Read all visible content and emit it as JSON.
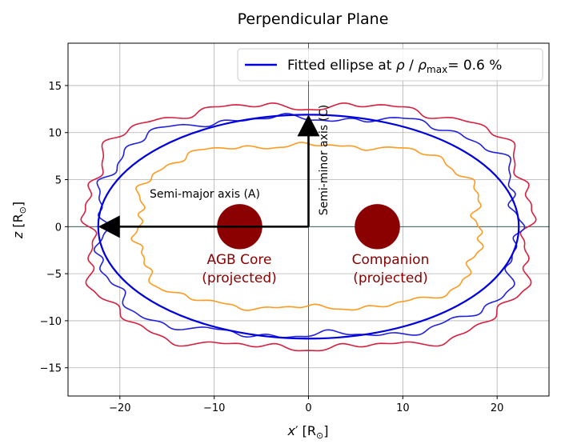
{
  "chart_data": {
    "type": "line",
    "title": "Perpendicular Plane",
    "xlabel_main": "x",
    "xlabel_prime": "′",
    "xlabel_unit": " [R",
    "xlabel_sun": "⊙",
    "xlabel_close": "]",
    "ylabel_main": "z",
    "ylabel_unit": " [R",
    "ylabel_sun": "⊙",
    "ylabel_close": "]",
    "xlim": [
      -25.5,
      25.5
    ],
    "ylim": [
      -18,
      19.5
    ],
    "xticks": [
      -20,
      -10,
      0,
      10,
      20
    ],
    "yticks": [
      -15,
      -10,
      -5,
      0,
      5,
      10,
      15
    ],
    "xtick_labels": [
      "−20",
      "−10",
      "0",
      "10",
      "20"
    ],
    "ytick_labels": [
      "−15",
      "−10",
      "−5",
      "0",
      "5",
      "10",
      "15"
    ],
    "grid": true,
    "legend_position": "top-right",
    "legend": {
      "label_prefix": "Fitted ellipse at ",
      "rho": "ρ",
      "slash": " / ",
      "rho_max": "ρ",
      "max_sub": "max",
      "label_suffix": "= 0.6 %"
    },
    "ellipse": {
      "cx": 0,
      "cz": 0,
      "a": 22.3,
      "c": 11.9,
      "color": "#0000dd"
    },
    "contours": [
      {
        "name": "outer",
        "color": "#d62040",
        "rx": 23.3,
        "rz": 12.8
      },
      {
        "name": "middle",
        "color": "#2222dd",
        "rx": 22.0,
        "rz": 11.5
      },
      {
        "name": "inner",
        "color": "#ff9a20",
        "rx": 18.0,
        "rz": 8.6
      }
    ],
    "bodies": [
      {
        "name": "AGB Core",
        "sub": "(projected)",
        "x": -7.3,
        "z": 0,
        "r": 2.4,
        "color": "#8b0000"
      },
      {
        "name": "Companion",
        "sub": "(projected)",
        "x": 7.3,
        "z": 0,
        "r": 2.4,
        "color": "#8b0000"
      }
    ],
    "arrows": [
      {
        "label": "Semi-major axis (A)",
        "from": [
          0,
          0
        ],
        "to": [
          -22.3,
          0
        ]
      },
      {
        "label": "Semi-minor axis (C)",
        "from": [
          0,
          0
        ],
        "to": [
          0,
          11.9
        ]
      }
    ],
    "reference_lines": {
      "x0": 0,
      "z0": 0
    }
  }
}
